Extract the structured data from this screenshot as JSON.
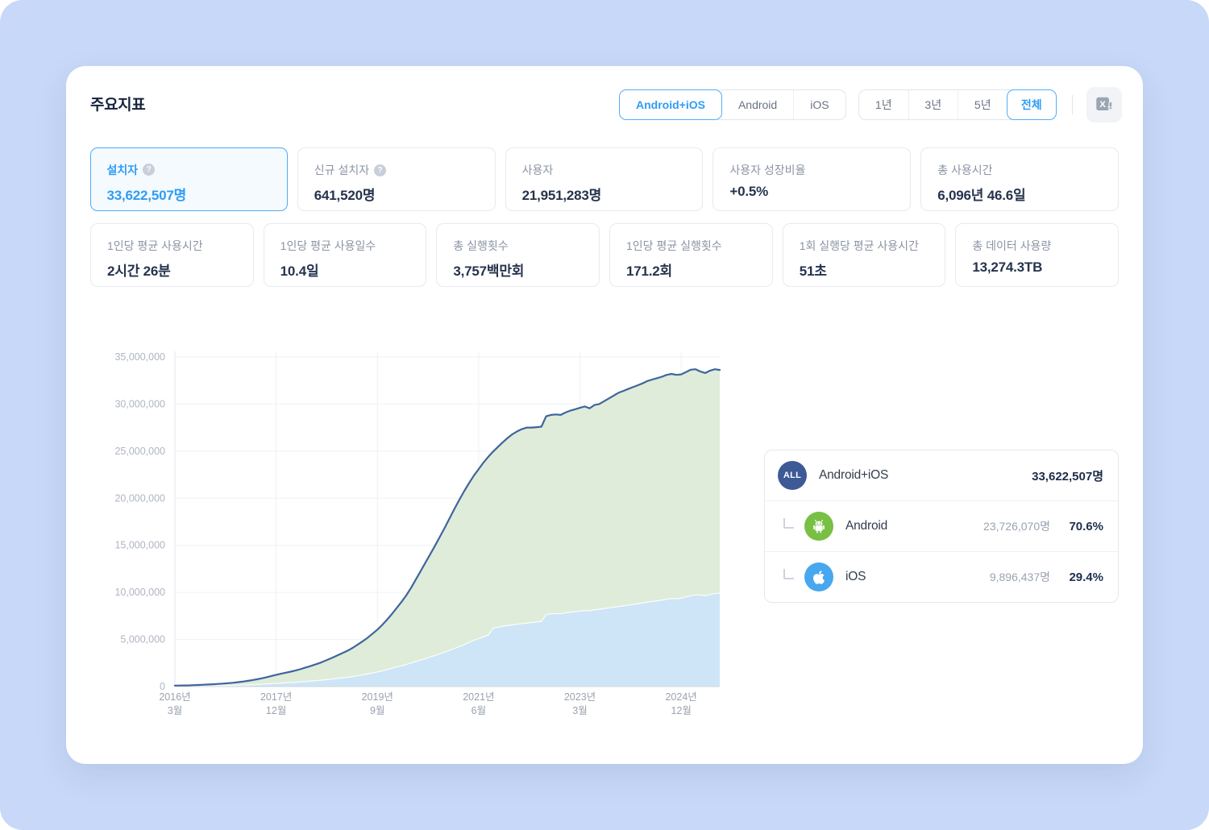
{
  "page": {
    "title": "주요지표"
  },
  "header": {
    "platform_tabs": [
      {
        "label": "Android+iOS",
        "active": true
      },
      {
        "label": "Android",
        "active": false
      },
      {
        "label": "iOS",
        "active": false
      }
    ],
    "period_tabs": [
      {
        "label": "1년",
        "active": false
      },
      {
        "label": "3년",
        "active": false
      },
      {
        "label": "5년",
        "active": false
      },
      {
        "label": "전체",
        "active": true
      }
    ],
    "export_icon": "excel-download-icon"
  },
  "metrics_row1": [
    {
      "label": "설치자",
      "value": "33,622,507명",
      "help": true,
      "active": true
    },
    {
      "label": "신규 설치자",
      "value": "641,520명",
      "help": true,
      "active": false
    },
    {
      "label": "사용자",
      "value": "21,951,283명",
      "active": false
    },
    {
      "label": "사용자 성장비율",
      "value": "+0.5%",
      "active": false
    },
    {
      "label": "총 사용시간",
      "value": "6,096년 46.6일",
      "active": false
    }
  ],
  "metrics_row2": [
    {
      "label": "1인당 평균 사용시간",
      "value": "2시간 26분"
    },
    {
      "label": "1인당 평균 사용일수",
      "value": "10.4일"
    },
    {
      "label": "총 실행횟수",
      "value": "3,757백만회"
    },
    {
      "label": "1인당 평균 실행횟수",
      "value": "171.2회"
    },
    {
      "label": "1회 실행당 평균 사용시간",
      "value": "51초"
    },
    {
      "label": "총 데이터 사용량",
      "value": "13,274.3TB"
    }
  ],
  "legend": {
    "rows": [
      {
        "icon": "all-badge",
        "icon_label": "ALL",
        "label": "Android+iOS",
        "value": "33,622,507명"
      },
      {
        "icon": "android-icon",
        "label": "Android",
        "count": "23,726,070명",
        "percent": "70.6%"
      },
      {
        "icon": "apple-icon",
        "label": "iOS",
        "count": "9,896,437명",
        "percent": "29.4%"
      }
    ]
  },
  "colors": {
    "accent_blue": "#2f9cf4",
    "line_navy": "#3f659c",
    "area_green": "#dcead6",
    "area_blue": "#cbe4f7",
    "android_green": "#77c043",
    "ios_blue": "#47a7ef",
    "all_navy": "#3d5a96",
    "page_background": "#c7d8f8"
  },
  "chart_data": {
    "type": "area",
    "x_start": "2016-03",
    "x_interval": "month",
    "ylim": [
      0,
      35000000
    ],
    "grid": true,
    "legend_position": "right-panel",
    "y_ticks": [
      {
        "value": 0,
        "label": "0"
      },
      {
        "value": 5000000,
        "label": "5,000,000"
      },
      {
        "value": 10000000,
        "label": "10,000,000"
      },
      {
        "value": 15000000,
        "label": "15,000,000"
      },
      {
        "value": 20000000,
        "label": "20,000,000"
      },
      {
        "value": 25000000,
        "label": "25,000,000"
      },
      {
        "value": 30000000,
        "label": "30,000,000"
      },
      {
        "value": 35000000,
        "label": "35,000,000"
      }
    ],
    "x_ticks": [
      {
        "index": 0,
        "line1": "2016년",
        "line2": "3월"
      },
      {
        "index": 21,
        "line1": "2017년",
        "line2": "12월"
      },
      {
        "index": 42,
        "line1": "2019년",
        "line2": "9월"
      },
      {
        "index": 63,
        "line1": "2021년",
        "line2": "6월"
      },
      {
        "index": 84,
        "line1": "2023년",
        "line2": "3월"
      },
      {
        "index": 105,
        "line1": "2024년",
        "line2": "12월"
      }
    ],
    "series": [
      {
        "name": "Android+iOS",
        "role": "total-line",
        "color": "#3f659c",
        "final_value": 33622507,
        "values_millions": [
          0.1,
          0.11,
          0.12,
          0.13,
          0.15,
          0.17,
          0.2,
          0.22,
          0.25,
          0.28,
          0.32,
          0.36,
          0.4,
          0.46,
          0.52,
          0.6,
          0.68,
          0.77,
          0.87,
          0.99,
          1.12,
          1.25,
          1.36,
          1.47,
          1.58,
          1.7,
          1.84,
          2.0,
          2.16,
          2.33,
          2.5,
          2.7,
          2.92,
          3.15,
          3.38,
          3.62,
          3.86,
          4.15,
          4.48,
          4.83,
          5.2,
          5.62,
          6.05,
          6.55,
          7.1,
          7.7,
          8.35,
          9.0,
          9.7,
          10.5,
          11.4,
          12.3,
          13.2,
          14.1,
          15.0,
          15.95,
          16.9,
          17.9,
          18.9,
          19.85,
          20.75,
          21.6,
          22.4,
          23.1,
          23.8,
          24.4,
          24.95,
          25.45,
          25.95,
          26.4,
          26.8,
          27.1,
          27.35,
          27.5,
          27.5,
          27.55,
          27.6,
          28.7,
          28.85,
          28.9,
          28.85,
          29.1,
          29.3,
          29.45,
          29.6,
          29.75,
          29.55,
          29.9,
          30.0,
          30.3,
          30.6,
          30.9,
          31.2,
          31.4,
          31.6,
          31.8,
          32.0,
          32.2,
          32.45,
          32.6,
          32.75,
          32.9,
          33.1,
          33.2,
          33.1,
          33.15,
          33.4,
          33.65,
          33.7,
          33.45,
          33.3,
          33.55,
          33.7,
          33.62
        ]
      },
      {
        "name": "iOS",
        "role": "bottom-area",
        "fill": "#cbe4f7",
        "final_value": 9896437,
        "values_millions": [
          0.02,
          0.02,
          0.03,
          0.03,
          0.04,
          0.05,
          0.06,
          0.07,
          0.08,
          0.09,
          0.1,
          0.11,
          0.12,
          0.14,
          0.16,
          0.18,
          0.2,
          0.22,
          0.25,
          0.28,
          0.31,
          0.34,
          0.37,
          0.4,
          0.43,
          0.46,
          0.5,
          0.54,
          0.58,
          0.62,
          0.66,
          0.71,
          0.76,
          0.82,
          0.88,
          0.94,
          1.0,
          1.08,
          1.16,
          1.25,
          1.34,
          1.44,
          1.55,
          1.67,
          1.8,
          1.93,
          2.07,
          2.21,
          2.35,
          2.5,
          2.66,
          2.82,
          2.98,
          3.14,
          3.3,
          3.48,
          3.66,
          3.85,
          4.05,
          4.25,
          4.45,
          4.7,
          4.9,
          5.1,
          5.3,
          5.45,
          6.2,
          6.3,
          6.4,
          6.48,
          6.55,
          6.62,
          6.68,
          6.74,
          6.8,
          6.86,
          6.92,
          7.65,
          7.72,
          7.76,
          7.74,
          7.82,
          7.9,
          7.95,
          8.02,
          8.08,
          8.05,
          8.15,
          8.2,
          8.28,
          8.35,
          8.42,
          8.5,
          8.57,
          8.64,
          8.72,
          8.8,
          8.88,
          8.96,
          9.04,
          9.1,
          9.18,
          9.28,
          9.35,
          9.32,
          9.4,
          9.52,
          9.64,
          9.75,
          9.7,
          9.66,
          9.76,
          9.88,
          9.9
        ]
      },
      {
        "name": "Android",
        "role": "middle-band",
        "fill": "#dcead6",
        "derived": "total minus iOS",
        "final_value": 23726070
      }
    ]
  }
}
